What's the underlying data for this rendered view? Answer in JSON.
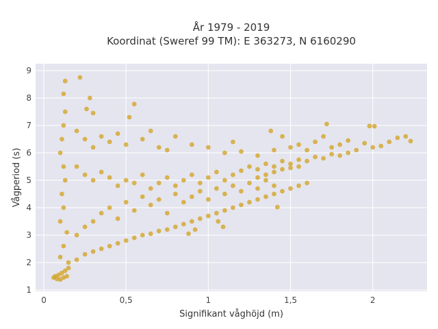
{
  "chart_data": {
    "type": "scatter",
    "title_line1": "År 1979 - 2019",
    "title_line2": "Koordinat (Sweref 99 TM): E 363273, N 6160290",
    "xlabel": "Signifikant våghöjd (m)",
    "ylabel": "Vågperiod (s)",
    "xlim": [
      -0.05,
      2.33
    ],
    "ylim": [
      0.95,
      9.25
    ],
    "x_ticks": [
      0,
      0.5,
      1,
      1.5,
      2
    ],
    "x_tick_labels": [
      "0",
      "0,5",
      "1",
      "1,5",
      "2"
    ],
    "y_ticks": [
      1,
      2,
      3,
      4,
      5,
      6,
      7,
      8,
      9
    ],
    "y_tick_labels": [
      "1",
      "2",
      "3",
      "4",
      "5",
      "6",
      "7",
      "8",
      "9"
    ],
    "grid": true,
    "plot_background": "#e5e5ef",
    "marker_color": "#d4a424",
    "points": [
      [
        0.06,
        1.45
      ],
      [
        0.07,
        1.5
      ],
      [
        0.08,
        1.4
      ],
      [
        0.09,
        1.55
      ],
      [
        0.1,
        1.38
      ],
      [
        0.11,
        1.62
      ],
      [
        0.12,
        1.45
      ],
      [
        0.13,
        1.7
      ],
      [
        0.14,
        1.5
      ],
      [
        0.15,
        1.8
      ],
      [
        0.1,
        2.2
      ],
      [
        0.12,
        2.6
      ],
      [
        0.14,
        3.1
      ],
      [
        0.1,
        3.5
      ],
      [
        0.12,
        4.0
      ],
      [
        0.11,
        4.5
      ],
      [
        0.13,
        5.0
      ],
      [
        0.12,
        5.5
      ],
      [
        0.1,
        6.0
      ],
      [
        0.11,
        6.5
      ],
      [
        0.12,
        7.0
      ],
      [
        0.13,
        7.5
      ],
      [
        0.12,
        8.15
      ],
      [
        0.13,
        8.62
      ],
      [
        0.22,
        8.75
      ],
      [
        0.28,
        8.0
      ],
      [
        0.3,
        7.45
      ],
      [
        0.55,
        7.78
      ],
      [
        0.52,
        7.3
      ],
      [
        0.26,
        7.6
      ],
      [
        0.2,
        6.8
      ],
      [
        0.25,
        6.5
      ],
      [
        0.3,
        6.2
      ],
      [
        0.35,
        6.6
      ],
      [
        0.4,
        6.4
      ],
      [
        0.45,
        6.7
      ],
      [
        0.5,
        6.3
      ],
      [
        0.6,
        6.5
      ],
      [
        0.65,
        6.8
      ],
      [
        0.7,
        6.2
      ],
      [
        0.75,
        6.1
      ],
      [
        0.8,
        6.6
      ],
      [
        0.9,
        6.3
      ],
      [
        1.0,
        6.2
      ],
      [
        1.1,
        6.0
      ],
      [
        1.15,
        6.4
      ],
      [
        1.2,
        6.05
      ],
      [
        1.3,
        5.9
      ],
      [
        1.4,
        6.1
      ],
      [
        1.45,
        6.6
      ],
      [
        1.5,
        6.2
      ],
      [
        1.55,
        6.3
      ],
      [
        1.6,
        6.1
      ],
      [
        1.65,
        6.4
      ],
      [
        1.7,
        6.6
      ],
      [
        1.75,
        6.2
      ],
      [
        1.8,
        6.3
      ],
      [
        1.85,
        6.45
      ],
      [
        1.9,
        6.1
      ],
      [
        1.95,
        6.35
      ],
      [
        2.0,
        6.2
      ],
      [
        2.05,
        6.25
      ],
      [
        2.1,
        6.4
      ],
      [
        2.15,
        6.55
      ],
      [
        2.2,
        6.6
      ],
      [
        2.23,
        6.43
      ],
      [
        1.98,
        6.98
      ],
      [
        2.01,
        6.97
      ],
      [
        1.72,
        7.05
      ],
      [
        1.38,
        6.8
      ],
      [
        0.2,
        5.5
      ],
      [
        0.25,
        5.2
      ],
      [
        0.3,
        5.0
      ],
      [
        0.35,
        5.3
      ],
      [
        0.4,
        5.1
      ],
      [
        0.45,
        4.8
      ],
      [
        0.5,
        5.0
      ],
      [
        0.55,
        4.9
      ],
      [
        0.6,
        5.2
      ],
      [
        0.65,
        4.7
      ],
      [
        0.7,
        4.9
      ],
      [
        0.75,
        5.1
      ],
      [
        0.8,
        4.8
      ],
      [
        0.85,
        5.0
      ],
      [
        0.9,
        5.2
      ],
      [
        0.95,
        4.9
      ],
      [
        1.0,
        5.1
      ],
      [
        1.05,
        5.3
      ],
      [
        1.1,
        5.0
      ],
      [
        1.15,
        5.2
      ],
      [
        1.2,
        5.35
      ],
      [
        1.25,
        5.5
      ],
      [
        1.3,
        5.4
      ],
      [
        1.35,
        5.6
      ],
      [
        1.4,
        5.5
      ],
      [
        1.45,
        5.7
      ],
      [
        1.5,
        5.6
      ],
      [
        1.55,
        5.75
      ],
      [
        1.6,
        5.7
      ],
      [
        1.65,
        5.85
      ],
      [
        1.7,
        5.8
      ],
      [
        1.75,
        5.95
      ],
      [
        1.8,
        5.9
      ],
      [
        1.85,
        6.0
      ],
      [
        1.3,
        5.1
      ],
      [
        1.35,
        5.2
      ],
      [
        1.4,
        5.3
      ],
      [
        1.45,
        5.4
      ],
      [
        1.5,
        5.45
      ],
      [
        1.55,
        5.5
      ],
      [
        0.15,
        2.0
      ],
      [
        0.2,
        2.1
      ],
      [
        0.25,
        2.3
      ],
      [
        0.3,
        2.4
      ],
      [
        0.35,
        2.5
      ],
      [
        0.4,
        2.6
      ],
      [
        0.45,
        2.7
      ],
      [
        0.5,
        2.8
      ],
      [
        0.55,
        2.9
      ],
      [
        0.6,
        3.0
      ],
      [
        0.65,
        3.05
      ],
      [
        0.7,
        3.15
      ],
      [
        0.75,
        3.2
      ],
      [
        0.8,
        3.3
      ],
      [
        0.85,
        3.4
      ],
      [
        0.9,
        3.5
      ],
      [
        0.95,
        3.6
      ],
      [
        1.0,
        3.7
      ],
      [
        1.05,
        3.8
      ],
      [
        1.1,
        3.9
      ],
      [
        1.15,
        4.0
      ],
      [
        1.2,
        4.1
      ],
      [
        1.25,
        4.2
      ],
      [
        1.3,
        4.3
      ],
      [
        1.35,
        4.4
      ],
      [
        1.4,
        4.5
      ],
      [
        1.45,
        4.6
      ],
      [
        1.5,
        4.7
      ],
      [
        1.55,
        4.8
      ],
      [
        1.6,
        4.9
      ],
      [
        0.2,
        3.0
      ],
      [
        0.25,
        3.3
      ],
      [
        0.3,
        3.5
      ],
      [
        0.35,
        3.8
      ],
      [
        0.4,
        4.0
      ],
      [
        0.45,
        3.6
      ],
      [
        0.5,
        4.2
      ],
      [
        0.55,
        3.9
      ],
      [
        0.6,
        4.4
      ],
      [
        0.65,
        4.1
      ],
      [
        0.7,
        4.3
      ],
      [
        0.75,
        3.8
      ],
      [
        0.8,
        4.5
      ],
      [
        0.85,
        4.2
      ],
      [
        0.9,
        4.4
      ],
      [
        0.95,
        4.6
      ],
      [
        1.0,
        4.3
      ],
      [
        1.05,
        4.7
      ],
      [
        1.1,
        4.5
      ],
      [
        1.15,
        4.8
      ],
      [
        1.2,
        4.6
      ],
      [
        1.25,
        4.9
      ],
      [
        1.3,
        4.7
      ],
      [
        1.35,
        5.0
      ],
      [
        1.4,
        4.8
      ],
      [
        1.42,
        4.02
      ],
      [
        1.06,
        3.5
      ],
      [
        1.09,
        3.3
      ],
      [
        0.92,
        3.2
      ],
      [
        0.88,
        3.05
      ]
    ]
  }
}
